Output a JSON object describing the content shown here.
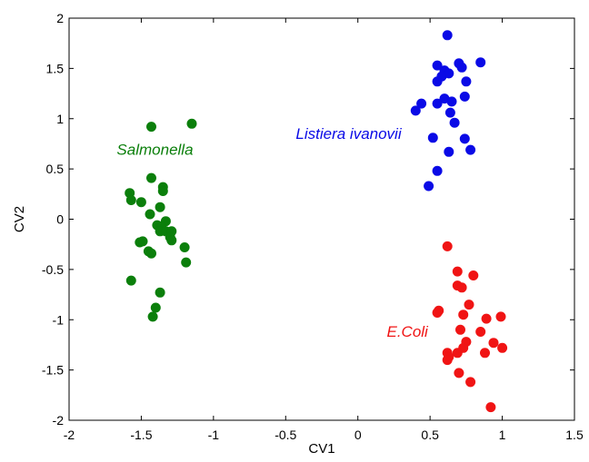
{
  "chart_data": {
    "type": "scatter",
    "title": "",
    "xlabel": "CV1",
    "ylabel": "CV2",
    "xlim": [
      -2,
      1.5
    ],
    "ylim": [
      -2,
      2
    ],
    "xticks": [
      -2,
      -1.5,
      -1,
      -0.5,
      0,
      0.5,
      1,
      1.5
    ],
    "yticks": [
      -2,
      -1.5,
      -1,
      -0.5,
      0,
      0.5,
      1,
      1.5,
      2
    ],
    "grid": false,
    "series": [
      {
        "name": "Salmonella",
        "color": "#0b7f0b",
        "points": [
          [
            -1.43,
            0.92
          ],
          [
            -1.15,
            0.95
          ],
          [
            -1.43,
            0.41
          ],
          [
            -1.58,
            0.26
          ],
          [
            -1.57,
            0.19
          ],
          [
            -1.5,
            0.17
          ],
          [
            -1.35,
            0.32
          ],
          [
            -1.35,
            0.28
          ],
          [
            -1.44,
            0.05
          ],
          [
            -1.37,
            0.12
          ],
          [
            -1.33,
            -0.02
          ],
          [
            -1.39,
            -0.06
          ],
          [
            -1.36,
            -0.07
          ],
          [
            -1.37,
            -0.12
          ],
          [
            -1.33,
            -0.12
          ],
          [
            -1.29,
            -0.12
          ],
          [
            -1.3,
            -0.18
          ],
          [
            -1.29,
            -0.21
          ],
          [
            -1.51,
            -0.23
          ],
          [
            -1.49,
            -0.22
          ],
          [
            -1.45,
            -0.32
          ],
          [
            -1.43,
            -0.34
          ],
          [
            -1.2,
            -0.28
          ],
          [
            -1.19,
            -0.43
          ],
          [
            -1.57,
            -0.61
          ],
          [
            -1.37,
            -0.73
          ],
          [
            -1.4,
            -0.88
          ],
          [
            -1.42,
            -0.97
          ]
        ]
      },
      {
        "name": "Listeria ivanovii",
        "color": "#0a0ae6",
        "points": [
          [
            0.62,
            1.83
          ],
          [
            0.85,
            1.56
          ],
          [
            0.55,
            1.53
          ],
          [
            0.7,
            1.55
          ],
          [
            0.72,
            1.51
          ],
          [
            0.6,
            1.48
          ],
          [
            0.63,
            1.45
          ],
          [
            0.58,
            1.42
          ],
          [
            0.55,
            1.37
          ],
          [
            0.75,
            1.37
          ],
          [
            0.74,
            1.22
          ],
          [
            0.6,
            1.2
          ],
          [
            0.55,
            1.15
          ],
          [
            0.44,
            1.15
          ],
          [
            0.65,
            1.17
          ],
          [
            0.4,
            1.08
          ],
          [
            0.64,
            1.06
          ],
          [
            0.67,
            0.96
          ],
          [
            0.52,
            0.81
          ],
          [
            0.74,
            0.8
          ],
          [
            0.78,
            0.69
          ],
          [
            0.63,
            0.67
          ],
          [
            0.55,
            0.48
          ],
          [
            0.49,
            0.33
          ]
        ]
      },
      {
        "name": "E.Coli",
        "color": "#f01414",
        "points": [
          [
            0.62,
            -0.27
          ],
          [
            0.69,
            -0.52
          ],
          [
            0.8,
            -0.56
          ],
          [
            0.69,
            -0.66
          ],
          [
            0.72,
            -0.68
          ],
          [
            0.77,
            -0.85
          ],
          [
            0.56,
            -0.91
          ],
          [
            0.55,
            -0.93
          ],
          [
            0.73,
            -0.95
          ],
          [
            0.99,
            -0.97
          ],
          [
            0.89,
            -0.99
          ],
          [
            0.71,
            -1.1
          ],
          [
            0.85,
            -1.12
          ],
          [
            0.75,
            -1.22
          ],
          [
            0.94,
            -1.23
          ],
          [
            1.0,
            -1.28
          ],
          [
            0.73,
            -1.28
          ],
          [
            0.69,
            -1.33
          ],
          [
            0.62,
            -1.33
          ],
          [
            0.88,
            -1.33
          ],
          [
            0.63,
            -1.37
          ],
          [
            0.62,
            -1.4
          ],
          [
            0.7,
            -1.53
          ],
          [
            0.78,
            -1.62
          ],
          [
            0.92,
            -1.87
          ]
        ]
      }
    ],
    "annotations": [
      {
        "text": "Salmonella",
        "x": -1.67,
        "y": 0.64,
        "color": "#0b7f0b"
      },
      {
        "text": "Listiera ivanovii",
        "x": -0.43,
        "y": 0.8,
        "color": "#0a0ae6"
      },
      {
        "text": "E.Coli",
        "x": 0.2,
        "y": -1.17,
        "color": "#f01414"
      }
    ]
  }
}
